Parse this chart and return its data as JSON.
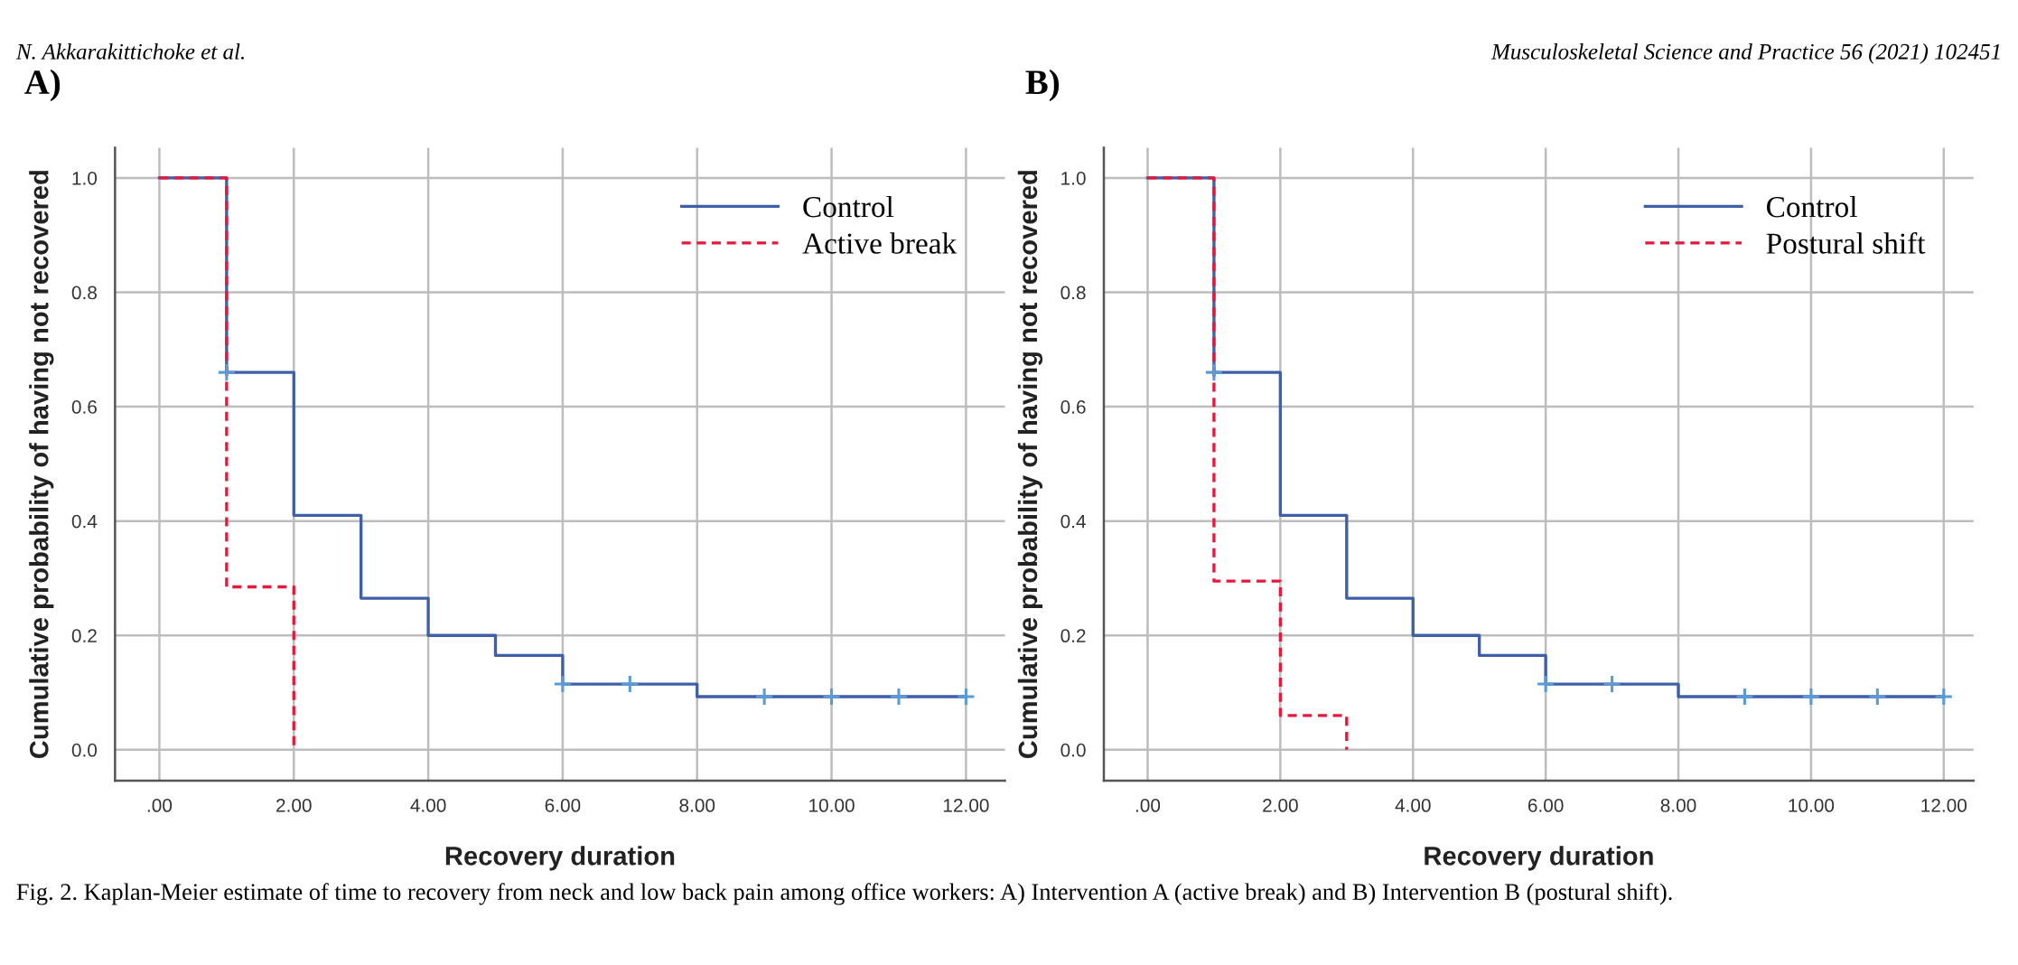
{
  "chart_data": [
    {
      "type": "step",
      "title": "A)",
      "xlabel": "Recovery duration",
      "ylabel": "Cumulative probability of having not recovered",
      "xlim": [
        -0.66,
        12.58
      ],
      "ylim": [
        -0.054,
        1.053
      ],
      "xticks": [
        {
          "value": 0,
          "label": ".00"
        },
        {
          "value": 2,
          "label": "2.00"
        },
        {
          "value": 4,
          "label": "4.00"
        },
        {
          "value": 6,
          "label": "6.00"
        },
        {
          "value": 8,
          "label": "8.00"
        },
        {
          "value": 10,
          "label": "10.00"
        },
        {
          "value": 12,
          "label": "12.00"
        }
      ],
      "yticks": [
        {
          "value": 0,
          "label": "0.0"
        },
        {
          "value": 0.2,
          "label": "0.2"
        },
        {
          "value": 0.4,
          "label": "0.4"
        },
        {
          "value": 0.6,
          "label": "0.6"
        },
        {
          "value": 0.8,
          "label": "0.8"
        },
        {
          "value": 1,
          "label": "1.0"
        }
      ],
      "grid": true,
      "legend": "top right",
      "series": [
        {
          "name": "Control",
          "color": "#3f5fa6",
          "line_style": "solid",
          "x": [
            0,
            1,
            2,
            3,
            4,
            5,
            6,
            8,
            12
          ],
          "values": [
            1.0,
            0.66,
            0.41,
            0.265,
            0.2,
            0.165,
            0.115,
            0.093,
            0.093
          ]
        },
        {
          "name": "Active break",
          "color": "#e8173c",
          "line_style": "dashed",
          "x": [
            0,
            1,
            2
          ],
          "values": [
            1.0,
            0.285,
            0.0
          ]
        },
        {
          "type": "scatter",
          "marker": "cross",
          "color": "#5b9bd5",
          "x": [
            1,
            6,
            7,
            9,
            10,
            11,
            12
          ],
          "values": [
            0.66,
            0.115,
            0.115,
            0.093,
            0.093,
            0.093,
            0.093
          ]
        }
      ],
      "annotations": [
        "N. Akkarakittichoke et al.",
        "Fig. 2. Kaplan-Meier estimate of time to recovery from neck and low back pain among office workers: A) Intervention A (active break) and B) Intervention B (postural shift)."
      ]
    },
    {
      "type": "step",
      "title": "B)",
      "xlabel": "Recovery duration",
      "ylabel": "Cumulative probability of having not recovered",
      "xlim": [
        -0.66,
        12.45
      ],
      "ylim": [
        -0.054,
        1.053
      ],
      "xticks": [
        {
          "value": 0,
          "label": ".00"
        },
        {
          "value": 2,
          "label": "2.00"
        },
        {
          "value": 4,
          "label": "4.00"
        },
        {
          "value": 6,
          "label": "6.00"
        },
        {
          "value": 8,
          "label": "8.00"
        },
        {
          "value": 10,
          "label": "10.00"
        },
        {
          "value": 12,
          "label": "12.00"
        }
      ],
      "yticks": [
        {
          "value": 0,
          "label": "0.0"
        },
        {
          "value": 0.2,
          "label": "0.2"
        },
        {
          "value": 0.4,
          "label": "0.4"
        },
        {
          "value": 0.6,
          "label": "0.6"
        },
        {
          "value": 0.8,
          "label": "0.8"
        },
        {
          "value": 1,
          "label": "1.0"
        }
      ],
      "grid": true,
      "legend": "top right",
      "series": [
        {
          "name": "Control",
          "color": "#3f5fa6",
          "line_style": "solid",
          "x": [
            0,
            1,
            2,
            3,
            4,
            5,
            6,
            8,
            12
          ],
          "values": [
            1.0,
            0.66,
            0.41,
            0.265,
            0.2,
            0.165,
            0.115,
            0.093,
            0.093
          ]
        },
        {
          "name": "Postural shift",
          "color": "#e8173c",
          "line_style": "dashed",
          "x": [
            0,
            1,
            2,
            3
          ],
          "values": [
            1.0,
            0.295,
            0.06,
            0.0
          ]
        },
        {
          "type": "scatter",
          "marker": "cross",
          "color": "#5b9bd5",
          "x": [
            1,
            6,
            7,
            9,
            10,
            11,
            12
          ],
          "values": [
            0.66,
            0.115,
            0.115,
            0.093,
            0.093,
            0.093,
            0.093
          ]
        }
      ],
      "annotations": [
        "Musculoskeletal Science and Practice 56 (2021) 102451"
      ]
    }
  ]
}
